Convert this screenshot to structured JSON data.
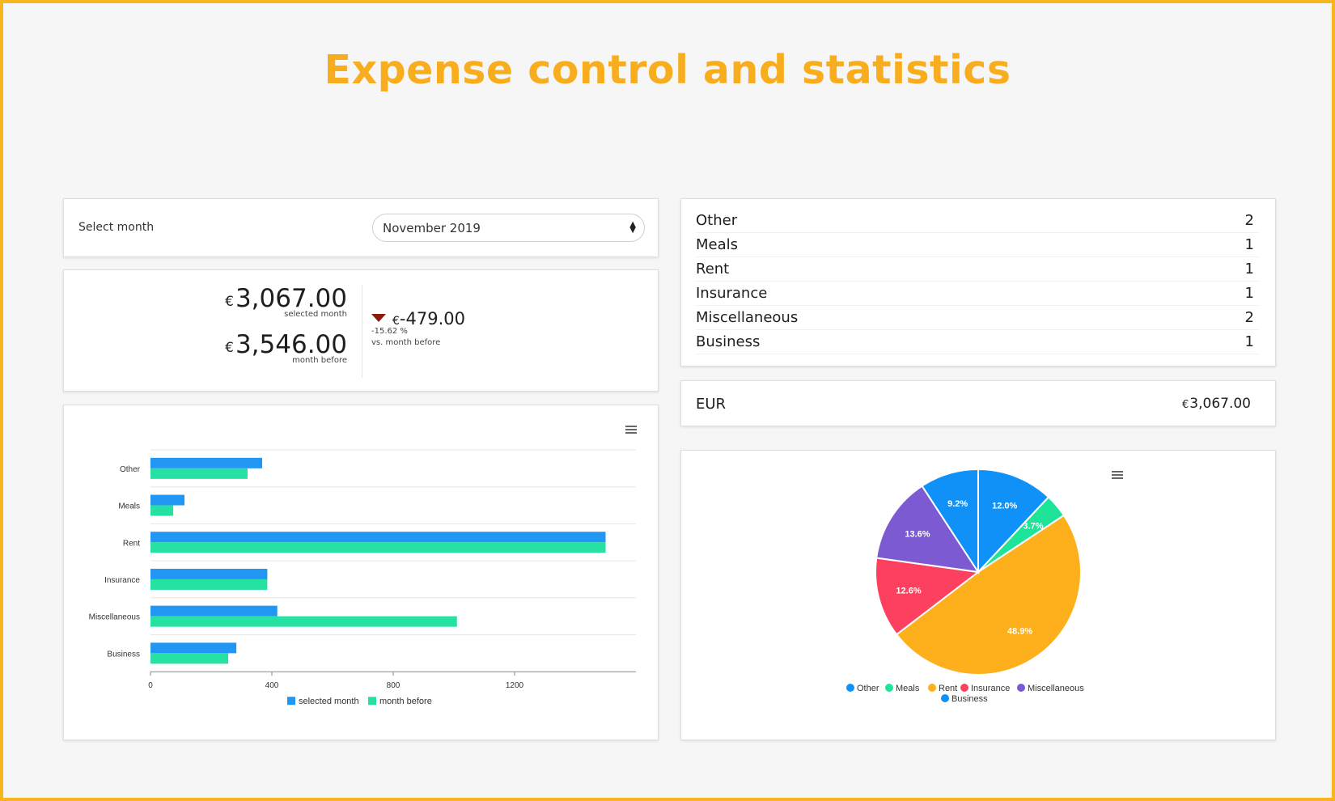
{
  "page": {
    "title": "Expense control and statistics"
  },
  "month_selector": {
    "label": "Select month",
    "value": "November 2019"
  },
  "totals": {
    "currency_symbol": "€",
    "selected": {
      "value": "3,067.00",
      "label": "selected month"
    },
    "previous": {
      "value": "3,546.00",
      "label": "month before"
    },
    "difference": {
      "value": "-479.00",
      "percent": "-15.62 %",
      "label": "vs. month before",
      "color": "#8b1a0e"
    }
  },
  "categories": [
    {
      "name": "Other",
      "count": "2"
    },
    {
      "name": "Meals",
      "count": "1"
    },
    {
      "name": "Rent",
      "count": "1"
    },
    {
      "name": "Insurance",
      "count": "1"
    },
    {
      "name": "Miscellaneous",
      "count": "2"
    },
    {
      "name": "Business",
      "count": "1"
    }
  ],
  "currency_total": {
    "code": "EUR",
    "symbol": "€",
    "value": "3,067.00"
  },
  "chart_data": [
    {
      "type": "bar",
      "orientation": "horizontal",
      "categories": [
        "Other",
        "Meals",
        "Rent",
        "Insurance",
        "Miscellaneous",
        "Business"
      ],
      "series": [
        {
          "name": "selected month",
          "values": [
            368,
            112,
            1500,
            385,
            418,
            283
          ],
          "color": "#2196f3"
        },
        {
          "name": "month before",
          "values": [
            320,
            75,
            1500,
            385,
            1010,
            256
          ],
          "color": "#26e0a4"
        }
      ],
      "xlim": [
        0,
        1600
      ],
      "xticks": [
        "0",
        "400",
        "800",
        "1200"
      ],
      "grid": true,
      "legend": "bottom"
    },
    {
      "type": "pie",
      "slices": [
        {
          "name": "Other",
          "percent": 12.0,
          "label": "12.0%",
          "color": "#0f91f8"
        },
        {
          "name": "Meals",
          "percent": 3.7,
          "label": "3.7%",
          "color": "#1ee49a"
        },
        {
          "name": "Rent",
          "percent": 48.9,
          "label": "48.9%",
          "color": "#fdb01c"
        },
        {
          "name": "Insurance",
          "percent": 12.6,
          "label": "12.6%",
          "color": "#fd405f"
        },
        {
          "name": "Miscellaneous",
          "percent": 13.6,
          "label": "13.6%",
          "color": "#7b5ad2"
        },
        {
          "name": "Business",
          "percent": 9.2,
          "label": "9.2%",
          "color": "#0f91f8"
        }
      ],
      "legend": "bottom"
    }
  ]
}
